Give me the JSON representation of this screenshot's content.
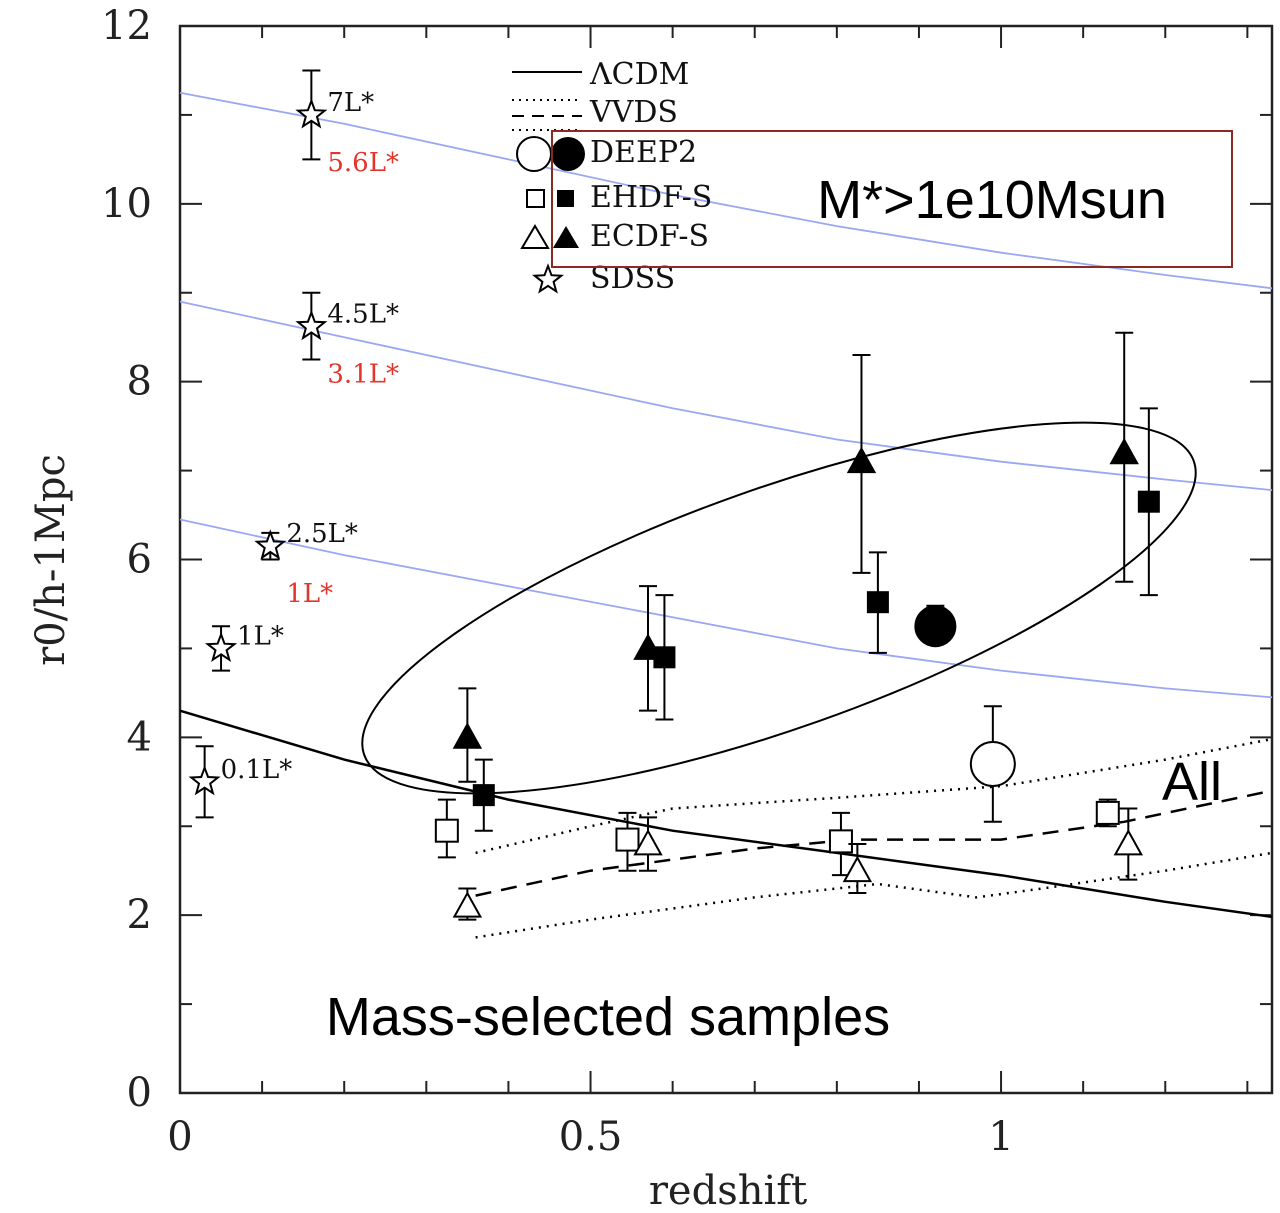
{
  "chart_data": {
    "type": "scatter",
    "xlabel": "redshift",
    "ylabel": "r0/h-1Mpc",
    "xlim": [
      0,
      1.33
    ],
    "ylim": [
      0,
      12
    ],
    "x_ticks": [
      {
        "v": 0,
        "label": "0"
      },
      {
        "v": 0.5,
        "label": "0.5"
      },
      {
        "v": 1,
        "label": "1"
      }
    ],
    "y_ticks": [
      {
        "v": 0,
        "label": "0"
      },
      {
        "v": 2,
        "label": "2"
      },
      {
        "v": 4,
        "label": "4"
      },
      {
        "v": 6,
        "label": "6"
      },
      {
        "v": 8,
        "label": "8"
      },
      {
        "v": 10,
        "label": "10"
      },
      {
        "v": 12,
        "label": "12"
      }
    ],
    "legend": {
      "placement": "top-center",
      "entries": [
        {
          "label": "ΛCDM",
          "style": "solid"
        },
        {
          "label": "VVDS",
          "style": "dashed-dotted"
        },
        {
          "label": "DEEP2",
          "style": "circle"
        },
        {
          "label": "EHDF-S",
          "style": "square"
        },
        {
          "label": "ECDF-S",
          "style": "triangle"
        },
        {
          "label": "SDSS",
          "style": "star"
        }
      ]
    },
    "lines": [
      {
        "name": "ΛCDM",
        "style": "solid",
        "color": "#000000",
        "x": [
          0,
          0.2,
          0.4,
          0.6,
          0.8,
          1.0,
          1.2,
          1.33
        ],
        "y": [
          4.3,
          3.75,
          3.3,
          2.95,
          2.7,
          2.45,
          2.15,
          1.98
        ]
      },
      {
        "style": "dashed",
        "color": "#000000",
        "x": [
          0.36,
          0.5,
          0.7,
          0.82,
          1.0,
          1.15,
          1.33
        ],
        "y": [
          2.22,
          2.5,
          2.75,
          2.85,
          2.85,
          3.05,
          3.4
        ]
      },
      {
        "style": "dotted",
        "color": "#000000",
        "x": [
          0.36,
          0.5,
          0.6,
          0.8,
          1.0,
          1.2,
          1.33
        ],
        "y": [
          2.7,
          3.0,
          3.2,
          3.32,
          3.45,
          3.75,
          3.98
        ]
      },
      {
        "style": "dotted",
        "color": "#000000",
        "x": [
          0.36,
          0.5,
          0.7,
          0.85,
          0.97,
          1.05,
          1.2,
          1.33
        ],
        "y": [
          1.75,
          1.95,
          2.2,
          2.35,
          2.2,
          2.3,
          2.5,
          2.7
        ]
      },
      {
        "style": "solid",
        "color": "#9aa7f3",
        "x": [
          0,
          0.2,
          0.4,
          0.6,
          0.8,
          1.0,
          1.2,
          1.33
        ],
        "y": [
          11.25,
          10.9,
          10.5,
          10.1,
          9.75,
          9.45,
          9.2,
          9.05
        ]
      },
      {
        "style": "solid",
        "color": "#9aa7f3",
        "x": [
          0,
          0.2,
          0.4,
          0.6,
          0.8,
          1.0,
          1.2,
          1.33
        ],
        "y": [
          8.9,
          8.5,
          8.1,
          7.7,
          7.35,
          7.1,
          6.9,
          6.78
        ]
      },
      {
        "style": "solid",
        "color": "#9aa7f3",
        "x": [
          0,
          0.2,
          0.4,
          0.6,
          0.8,
          1.0,
          1.2,
          1.33
        ],
        "y": [
          6.45,
          6.05,
          5.7,
          5.35,
          5.0,
          4.75,
          4.55,
          4.45
        ]
      }
    ],
    "series": [
      {
        "name": "ECDF-S",
        "marker": "triangle",
        "filled": true,
        "points": [
          {
            "x": 0.35,
            "y": 4.0,
            "lo": 3.5,
            "hi": 4.55
          },
          {
            "x": 0.57,
            "y": 5.0,
            "lo": 4.3,
            "hi": 5.7
          },
          {
            "x": 0.83,
            "y": 7.1,
            "lo": 5.85,
            "hi": 8.3
          },
          {
            "x": 1.15,
            "y": 7.2,
            "lo": 5.75,
            "hi": 8.55
          }
        ]
      },
      {
        "name": "EHDF-S",
        "marker": "square",
        "filled": true,
        "points": [
          {
            "x": 0.37,
            "y": 3.35,
            "lo": 2.95,
            "hi": 3.75
          },
          {
            "x": 0.59,
            "y": 4.9,
            "lo": 4.2,
            "hi": 5.6
          },
          {
            "x": 0.85,
            "y": 5.52,
            "lo": 4.95,
            "hi": 6.08
          },
          {
            "x": 1.18,
            "y": 6.65,
            "lo": 5.6,
            "hi": 7.7
          }
        ]
      },
      {
        "name": "DEEP2",
        "marker": "circle",
        "filled": true,
        "points": [
          {
            "x": 0.92,
            "y": 5.25,
            "lo": 5.05,
            "hi": 5.48
          }
        ]
      },
      {
        "name": "DEEP2",
        "marker": "circle",
        "filled": false,
        "points": [
          {
            "x": 0.99,
            "y": 3.7,
            "lo": 3.05,
            "hi": 4.35
          }
        ]
      },
      {
        "name": "EHDF-S",
        "marker": "square",
        "filled": false,
        "points": [
          {
            "x": 0.325,
            "y": 2.95,
            "lo": 2.65,
            "hi": 3.3
          },
          {
            "x": 0.545,
            "y": 2.85,
            "lo": 2.5,
            "hi": 3.15
          },
          {
            "x": 0.805,
            "y": 2.83,
            "lo": 2.45,
            "hi": 3.15
          },
          {
            "x": 1.13,
            "y": 3.15,
            "lo": 3.0,
            "hi": 3.3
          }
        ]
      },
      {
        "name": "ECDF-S",
        "marker": "triangle",
        "filled": false,
        "points": [
          {
            "x": 0.35,
            "y": 2.1,
            "lo": 1.95,
            "hi": 2.3
          },
          {
            "x": 0.57,
            "y": 2.8,
            "lo": 2.5,
            "hi": 3.1
          },
          {
            "x": 0.825,
            "y": 2.5,
            "lo": 2.25,
            "hi": 2.8
          },
          {
            "x": 1.155,
            "y": 2.8,
            "lo": 2.4,
            "hi": 3.2
          }
        ]
      },
      {
        "name": "SDSS",
        "marker": "star",
        "filled": false,
        "points": [
          {
            "x": 0.16,
            "y": 11.0,
            "lo": 10.5,
            "hi": 11.5
          },
          {
            "x": 0.16,
            "y": 8.62,
            "lo": 8.25,
            "hi": 9.0
          },
          {
            "x": 0.11,
            "y": 6.15,
            "lo": 6.0,
            "hi": 6.3
          },
          {
            "x": 0.05,
            "y": 5.0,
            "lo": 4.75,
            "hi": 5.25
          },
          {
            "x": 0.03,
            "y": 3.5,
            "lo": 3.1,
            "hi": 3.9
          }
        ]
      }
    ],
    "star_labels": [
      {
        "text": "7L*",
        "red": "5.6L*"
      },
      {
        "text": "4.5L*",
        "red": "3.1L*"
      },
      {
        "text": "2.5L*",
        "red": "1L*"
      },
      {
        "text": "1L*",
        "red": ""
      },
      {
        "text": "0.1L*",
        "red": ""
      }
    ],
    "annotations": {
      "box_label": "M*>1e10Msun",
      "all_label": "All",
      "bottom_label": "Mass-selected samples"
    }
  }
}
